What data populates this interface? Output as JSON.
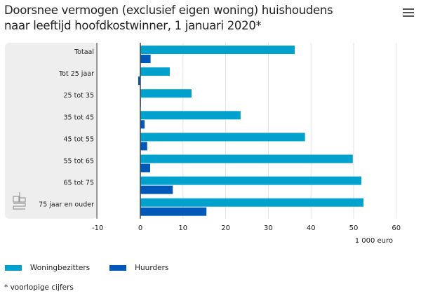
{
  "title_line1": "Doorsnee vermogen (exclusief eigen woning) huishoudens",
  "title_line2": "naar leeftijd hoofdkostwinner, 1 januari 2020*",
  "menu_icon": "hamburger-menu-icon",
  "logo": "cbs",
  "footnote": "* voorlopige cijfers",
  "chart_data": {
    "type": "bar",
    "orientation": "horizontal",
    "title": "Doorsnee vermogen (exclusief eigen woning) huishoudens naar leeftijd hoofdkostwinner, 1 januari 2020*",
    "categories": [
      "Totaal",
      "Tot 25 jaar",
      "25 tot 35",
      "35 tot 45",
      "45 tot 55",
      "55 tot 65",
      "65 tot 75",
      "75 jaar en ouder"
    ],
    "series": [
      {
        "name": "Woningbezitters",
        "color": "#00a1cd",
        "values": [
          36.2,
          6.9,
          12.0,
          23.5,
          38.6,
          49.8,
          51.8,
          52.3
        ]
      },
      {
        "name": "Huurders",
        "color": "#0058b8",
        "values": [
          2.4,
          -0.5,
          0.1,
          1.0,
          1.6,
          2.3,
          7.6,
          15.5
        ]
      }
    ],
    "xlabel": "1 000 euro",
    "xlim": [
      -10,
      60
    ],
    "xticks": [
      "-10",
      "0",
      "10",
      "20",
      "30",
      "40",
      "50",
      "60"
    ],
    "grid": true,
    "legend": "bottom-left"
  }
}
